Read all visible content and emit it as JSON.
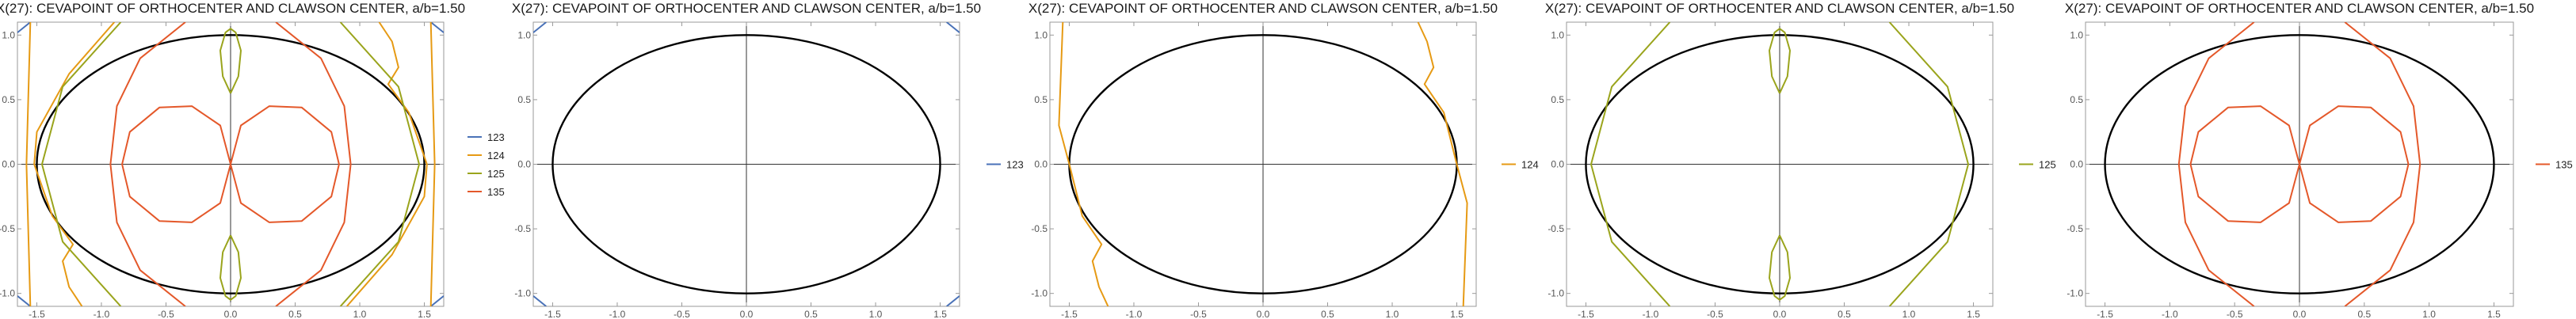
{
  "colors": {
    "123": "#4a72b8",
    "124": "#e69a14",
    "125": "#9aa41c",
    "135": "#e4582a",
    "ellipse": "#000000",
    "axes": "#333333",
    "frame": "#999999"
  },
  "chart_data": [
    {
      "type": "scatter",
      "subtype": "implicit-curves",
      "title": "X(27): CEVAPOINT OF ORTHOCENTER AND CLAWSON CENTER, a/b=1.50",
      "xlim": [
        -1.65,
        1.65
      ],
      "ylim": [
        -1.1,
        1.1
      ],
      "xticks": [
        "-1.5",
        "-1.0",
        "-0.5",
        "0.0",
        "0.5",
        "1.0",
        "1.5"
      ],
      "yticks": [
        "-1.0",
        "-0.5",
        "0.0",
        "0.5",
        "1.0"
      ],
      "ellipse": {
        "a": 1.5,
        "b": 1.0
      },
      "grid": false,
      "legend_position": "right",
      "series": [
        {
          "name": "123",
          "key": "123",
          "curves": [
            [
              [
                -1.65,
                1.02
              ],
              [
                -1.55,
                1.1
              ]
            ],
            [
              [
                1.55,
                1.1
              ],
              [
                1.65,
                1.02
              ]
            ],
            [
              [
                -1.65,
                -1.02
              ],
              [
                -1.55,
                -1.1
              ]
            ],
            [
              [
                1.55,
                -1.1
              ],
              [
                1.65,
                -1.02
              ]
            ]
          ]
        },
        {
          "name": "124",
          "key": "124",
          "curves": [
            [
              [
                -0.9,
                1.1
              ],
              [
                -1.25,
                0.7
              ],
              [
                -1.5,
                0.25
              ],
              [
                -1.52,
                0.0
              ],
              [
                -1.38,
                -0.4
              ],
              [
                -1.22,
                -0.62
              ],
              [
                -1.3,
                -0.75
              ],
              [
                -1.25,
                -0.95
              ],
              [
                -1.15,
                -1.1
              ]
            ],
            [
              [
                0.9,
                -1.1
              ],
              [
                1.25,
                -0.7
              ],
              [
                1.5,
                -0.25
              ],
              [
                1.52,
                0.0
              ],
              [
                1.38,
                0.4
              ],
              [
                1.22,
                0.62
              ],
              [
                1.3,
                0.75
              ],
              [
                1.25,
                0.95
              ],
              [
                1.15,
                1.1
              ]
            ],
            [
              [
                -1.55,
                1.1
              ],
              [
                -1.58,
                0.0
              ],
              [
                -1.55,
                -1.1
              ]
            ],
            [
              [
                1.55,
                1.1
              ],
              [
                1.58,
                0.0
              ],
              [
                1.55,
                -1.1
              ]
            ]
          ]
        },
        {
          "name": "125",
          "key": "125",
          "curves": [
            [
              [
                -0.85,
                1.1
              ],
              [
                -1.3,
                0.6
              ],
              [
                -1.46,
                0.0
              ],
              [
                -1.3,
                -0.6
              ],
              [
                -0.85,
                -1.1
              ]
            ],
            [
              [
                0.85,
                1.1
              ],
              [
                1.3,
                0.6
              ],
              [
                1.46,
                0.0
              ],
              [
                1.3,
                -0.6
              ],
              [
                0.85,
                -1.1
              ]
            ],
            [
              [
                0.0,
                0.55
              ],
              [
                -0.06,
                0.68
              ],
              [
                -0.08,
                0.88
              ],
              [
                -0.04,
                1.02
              ],
              [
                0.0,
                1.05
              ],
              [
                0.04,
                1.02
              ],
              [
                0.08,
                0.88
              ],
              [
                0.06,
                0.68
              ],
              [
                0.0,
                0.55
              ]
            ],
            [
              [
                0.0,
                -0.55
              ],
              [
                -0.06,
                -0.68
              ],
              [
                -0.08,
                -0.88
              ],
              [
                -0.04,
                -1.02
              ],
              [
                0.0,
                -1.05
              ],
              [
                0.04,
                -1.02
              ],
              [
                0.08,
                -0.88
              ],
              [
                0.06,
                -0.68
              ],
              [
                0.0,
                -0.55
              ]
            ]
          ]
        },
        {
          "name": "135",
          "key": "135",
          "curves": [
            [
              [
                -0.0,
                0.0
              ],
              [
                -0.08,
                0.3
              ],
              [
                -0.3,
                0.45
              ],
              [
                -0.55,
                0.44
              ],
              [
                -0.78,
                0.25
              ],
              [
                -0.84,
                0.0
              ],
              [
                -0.78,
                -0.25
              ],
              [
                -0.55,
                -0.44
              ],
              [
                -0.3,
                -0.45
              ],
              [
                -0.08,
                -0.3
              ],
              [
                0.0,
                0.0
              ]
            ],
            [
              [
                0.0,
                0.0
              ],
              [
                0.08,
                0.3
              ],
              [
                0.3,
                0.45
              ],
              [
                0.55,
                0.44
              ],
              [
                0.78,
                0.25
              ],
              [
                0.84,
                0.0
              ],
              [
                0.78,
                -0.25
              ],
              [
                0.55,
                -0.44
              ],
              [
                0.3,
                -0.45
              ],
              [
                0.08,
                -0.3
              ],
              [
                0.0,
                0.0
              ]
            ],
            [
              [
                -0.35,
                1.1
              ],
              [
                -0.7,
                0.82
              ],
              [
                -0.88,
                0.45
              ],
              [
                -0.93,
                0.0
              ],
              [
                -0.88,
                -0.45
              ],
              [
                -0.7,
                -0.82
              ],
              [
                -0.35,
                -1.1
              ]
            ],
            [
              [
                0.35,
                1.1
              ],
              [
                0.7,
                0.82
              ],
              [
                0.88,
                0.45
              ],
              [
                0.93,
                0.0
              ],
              [
                0.88,
                -0.45
              ],
              [
                0.7,
                -0.82
              ],
              [
                0.35,
                -1.1
              ]
            ]
          ]
        }
      ]
    },
    {
      "type": "scatter",
      "subtype": "implicit-curves",
      "title": "X(27): CEVAPOINT OF ORTHOCENTER AND CLAWSON CENTER, a/b=1.50",
      "xlim": [
        -1.65,
        1.65
      ],
      "ylim": [
        -1.1,
        1.1
      ],
      "xticks": [
        "-1.5",
        "-1.0",
        "-0.5",
        "0.0",
        "0.5",
        "1.0",
        "1.5"
      ],
      "yticks": [
        "-1.0",
        "-0.5",
        "0.0",
        "0.5",
        "1.0"
      ],
      "ellipse": {
        "a": 1.5,
        "b": 1.0
      },
      "grid": false,
      "legend_position": "right",
      "series": [
        {
          "name": "123",
          "key": "123",
          "curves": [
            [
              [
                -1.65,
                1.02
              ],
              [
                -1.55,
                1.1
              ]
            ],
            [
              [
                1.55,
                1.1
              ],
              [
                1.65,
                1.02
              ]
            ],
            [
              [
                -1.65,
                -1.02
              ],
              [
                -1.55,
                -1.1
              ]
            ],
            [
              [
                1.55,
                -1.1
              ],
              [
                1.65,
                -1.02
              ]
            ]
          ]
        }
      ]
    },
    {
      "type": "scatter",
      "subtype": "implicit-curves",
      "title": "X(27): CEVAPOINT OF ORTHOCENTER AND CLAWSON CENTER, a/b=1.50",
      "xlim": [
        -1.65,
        1.65
      ],
      "ylim": [
        -1.1,
        1.1
      ],
      "xticks": [
        "-1.5",
        "-1.0",
        "-0.5",
        "0.0",
        "0.5",
        "1.0",
        "1.5"
      ],
      "yticks": [
        "-1.0",
        "-0.5",
        "0.0",
        "0.5",
        "1.0"
      ],
      "ellipse": {
        "a": 1.5,
        "b": 1.0
      },
      "grid": false,
      "legend_position": "right",
      "series": [
        {
          "name": "124",
          "key": "124",
          "curves": [
            [
              [
                -1.55,
                1.1
              ],
              [
                -1.58,
                0.3
              ],
              [
                -1.5,
                0.0
              ],
              [
                -1.4,
                -0.4
              ],
              [
                -1.25,
                -0.62
              ],
              [
                -1.32,
                -0.75
              ],
              [
                -1.27,
                -0.95
              ],
              [
                -1.2,
                -1.1
              ]
            ],
            [
              [
                1.2,
                1.1
              ],
              [
                1.27,
                0.95
              ],
              [
                1.32,
                0.75
              ],
              [
                1.25,
                0.62
              ],
              [
                1.4,
                0.4
              ],
              [
                1.5,
                0.0
              ],
              [
                1.58,
                -0.3
              ],
              [
                1.55,
                -1.1
              ]
            ]
          ]
        }
      ]
    },
    {
      "type": "scatter",
      "subtype": "implicit-curves",
      "title": "X(27): CEVAPOINT OF ORTHOCENTER AND CLAWSON CENTER, a/b=1.50",
      "xlim": [
        -1.65,
        1.65
      ],
      "ylim": [
        -1.1,
        1.1
      ],
      "xticks": [
        "-1.5",
        "-1.0",
        "-0.5",
        "0.0",
        "0.5",
        "1.0",
        "1.5"
      ],
      "yticks": [
        "-1.0",
        "-0.5",
        "0.0",
        "0.5",
        "1.0"
      ],
      "ellipse": {
        "a": 1.5,
        "b": 1.0
      },
      "grid": false,
      "legend_position": "right",
      "series": [
        {
          "name": "125",
          "key": "125",
          "curves": [
            [
              [
                -0.85,
                1.1
              ],
              [
                -1.3,
                0.6
              ],
              [
                -1.46,
                0.0
              ],
              [
                -1.3,
                -0.6
              ],
              [
                -0.85,
                -1.1
              ]
            ],
            [
              [
                0.85,
                1.1
              ],
              [
                1.3,
                0.6
              ],
              [
                1.46,
                0.0
              ],
              [
                1.3,
                -0.6
              ],
              [
                0.85,
                -1.1
              ]
            ],
            [
              [
                0.0,
                0.55
              ],
              [
                -0.06,
                0.68
              ],
              [
                -0.08,
                0.88
              ],
              [
                -0.04,
                1.02
              ],
              [
                0.0,
                1.05
              ],
              [
                0.04,
                1.02
              ],
              [
                0.08,
                0.88
              ],
              [
                0.06,
                0.68
              ],
              [
                0.0,
                0.55
              ]
            ],
            [
              [
                0.0,
                -0.55
              ],
              [
                -0.06,
                -0.68
              ],
              [
                -0.08,
                -0.88
              ],
              [
                -0.04,
                -1.02
              ],
              [
                0.0,
                -1.05
              ],
              [
                0.04,
                -1.02
              ],
              [
                0.08,
                -0.88
              ],
              [
                0.06,
                -0.68
              ],
              [
                0.0,
                -0.55
              ]
            ]
          ]
        }
      ]
    },
    {
      "type": "scatter",
      "subtype": "implicit-curves",
      "title": "X(27): CEVAPOINT OF ORTHOCENTER AND CLAWSON CENTER, a/b=1.50",
      "xlim": [
        -1.65,
        1.65
      ],
      "ylim": [
        -1.1,
        1.1
      ],
      "xticks": [
        "-1.5",
        "-1.0",
        "-0.5",
        "0.0",
        "0.5",
        "1.0",
        "1.5"
      ],
      "yticks": [
        "-1.0",
        "-0.5",
        "0.0",
        "0.5",
        "1.0"
      ],
      "ellipse": {
        "a": 1.5,
        "b": 1.0
      },
      "grid": false,
      "legend_position": "right",
      "series": [
        {
          "name": "135",
          "key": "135",
          "curves": [
            [
              [
                -0.0,
                0.0
              ],
              [
                -0.08,
                0.3
              ],
              [
                -0.3,
                0.45
              ],
              [
                -0.55,
                0.44
              ],
              [
                -0.78,
                0.25
              ],
              [
                -0.84,
                0.0
              ],
              [
                -0.78,
                -0.25
              ],
              [
                -0.55,
                -0.44
              ],
              [
                -0.3,
                -0.45
              ],
              [
                -0.08,
                -0.3
              ],
              [
                0.0,
                0.0
              ]
            ],
            [
              [
                0.0,
                0.0
              ],
              [
                0.08,
                0.3
              ],
              [
                0.3,
                0.45
              ],
              [
                0.55,
                0.44
              ],
              [
                0.78,
                0.25
              ],
              [
                0.84,
                0.0
              ],
              [
                0.78,
                -0.25
              ],
              [
                0.55,
                -0.44
              ],
              [
                0.3,
                -0.45
              ],
              [
                0.08,
                -0.3
              ],
              [
                0.0,
                0.0
              ]
            ],
            [
              [
                -0.35,
                1.1
              ],
              [
                -0.7,
                0.82
              ],
              [
                -0.88,
                0.45
              ],
              [
                -0.93,
                0.0
              ],
              [
                -0.88,
                -0.45
              ],
              [
                -0.7,
                -0.82
              ],
              [
                -0.35,
                -1.1
              ]
            ],
            [
              [
                0.35,
                1.1
              ],
              [
                0.7,
                0.82
              ],
              [
                0.88,
                0.45
              ],
              [
                0.93,
                0.0
              ],
              [
                0.88,
                -0.45
              ],
              [
                0.7,
                -0.82
              ],
              [
                0.35,
                -1.1
              ]
            ]
          ]
        }
      ]
    }
  ]
}
